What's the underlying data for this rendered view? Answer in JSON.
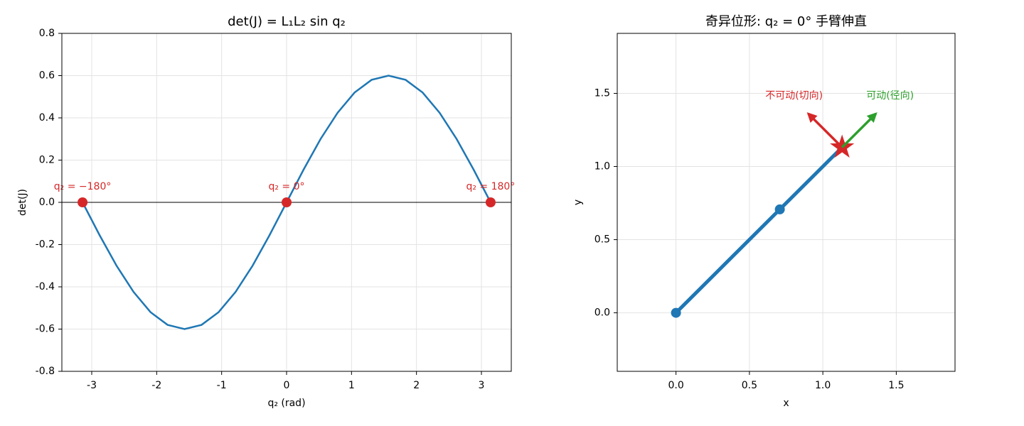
{
  "chart_data": [
    {
      "type": "line",
      "title": "det(J) = L₁L₂ sin q₂",
      "xlabel": "q₂ (rad)",
      "ylabel": "det(J)",
      "x": [
        -3.1416,
        -2.8798,
        -2.618,
        -2.3562,
        -2.0944,
        -1.8326,
        -1.5708,
        -1.309,
        -1.0472,
        -0.7854,
        -0.5236,
        -0.2618,
        0,
        0.2618,
        0.5236,
        0.7854,
        1.0472,
        1.309,
        1.5708,
        1.8326,
        2.0944,
        2.3562,
        2.618,
        2.8798,
        3.1416
      ],
      "values": [
        0,
        -0.155,
        -0.3,
        -0.424,
        -0.52,
        -0.58,
        -0.6,
        -0.58,
        -0.52,
        -0.424,
        -0.3,
        -0.155,
        0,
        0.155,
        0.3,
        0.424,
        0.52,
        0.58,
        0.6,
        0.58,
        0.52,
        0.424,
        0.3,
        0.155,
        0
      ],
      "color": "#1f77b4",
      "points": {
        "x": [
          -3.1416,
          0,
          3.1416
        ],
        "values": [
          0,
          0,
          0
        ],
        "labels": [
          "q₂ = −180°",
          "q₂ = 0°",
          "q₂ = 180°"
        ],
        "color": "#d62728"
      },
      "hline": 0,
      "xlim": [
        -3.46,
        3.46
      ],
      "xticks": [
        -3,
        -2,
        -1,
        0,
        1,
        2,
        3
      ],
      "ylim": [
        -0.8,
        0.8
      ],
      "yticks": [
        -0.8,
        -0.6,
        -0.4,
        -0.2,
        {
          "value": 0,
          "label": "0.0"
        },
        0.2,
        0.4,
        0.6,
        0.8
      ],
      "grid": true
    },
    {
      "type": "arm",
      "title": "奇异位形: q₂ = 0° 手臂伸直",
      "xlabel": "x",
      "ylabel": "y",
      "x": [
        0,
        0.707,
        1.131
      ],
      "values": [
        0,
        0.707,
        1.131
      ],
      "color": "#1f77b4",
      "end_color": "#d62728",
      "arrows": [
        {
          "label": "不可动(切向)",
          "color": "#d62728",
          "dx": -0.23,
          "dy": 0.23
        },
        {
          "label": "可动(径向)",
          "color": "#2ca02c",
          "dx": 0.23,
          "dy": 0.23
        }
      ],
      "xlim": [
        -0.4,
        1.9
      ],
      "xticks": [
        {
          "value": 0,
          "label": "0.0"
        },
        0.5,
        {
          "value": 1,
          "label": "1.0"
        },
        1.5
      ],
      "ylim": [
        -0.4,
        1.91
      ],
      "yticks": [
        {
          "value": 0,
          "label": "0.0"
        },
        0.5,
        {
          "value": 1,
          "label": "1.0"
        },
        1.5
      ],
      "grid": true
    }
  ]
}
